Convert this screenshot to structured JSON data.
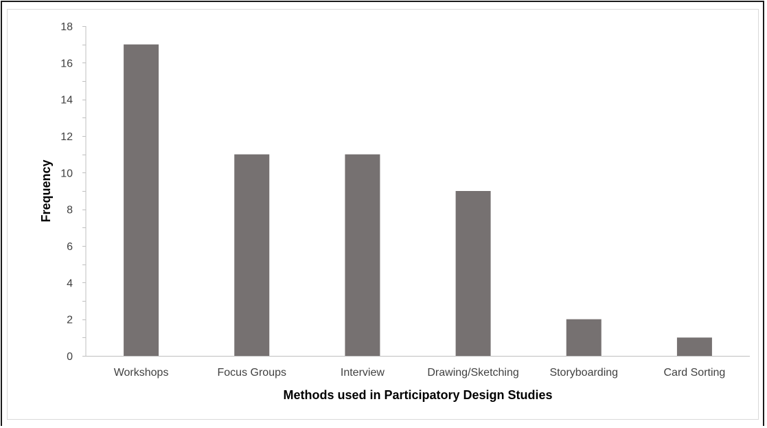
{
  "chart_data": {
    "type": "bar",
    "title": "",
    "xlabel": "Methods used in Participatory Design Studies",
    "ylabel": "Frequency",
    "categories": [
      "Workshops",
      "Focus Groups",
      "Interview",
      "Drawing/Sketching",
      "Storyboarding",
      "Card Sorting"
    ],
    "values": [
      17,
      11,
      11,
      9,
      2,
      1
    ],
    "ylim": [
      0,
      18
    ],
    "yticks": [
      0,
      2,
      4,
      6,
      8,
      10,
      12,
      14,
      16,
      18
    ],
    "grid": false,
    "legend": "none",
    "bar_color": "#767171"
  }
}
